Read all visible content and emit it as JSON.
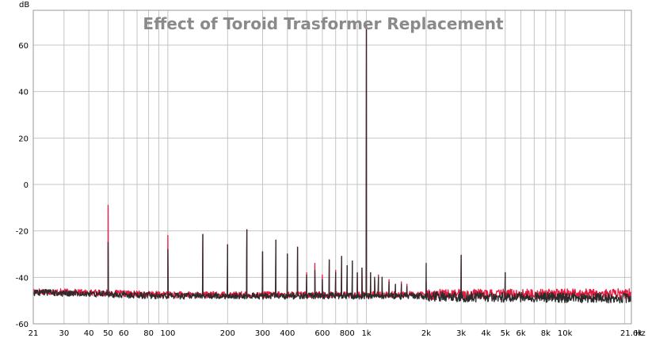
{
  "chart_data": {
    "type": "line",
    "title": "Effect of Toroid Trasformer Replacement",
    "ylabel": "dB",
    "xlabel": "Hz",
    "x_scale": "log",
    "xlim": [
      21,
      21600
    ],
    "ylim": [
      -60,
      75
    ],
    "grid": true,
    "x_ticks": [
      {
        "value": 21,
        "label": "21"
      },
      {
        "value": 30,
        "label": "30"
      },
      {
        "value": 40,
        "label": "40"
      },
      {
        "value": 50,
        "label": "50"
      },
      {
        "value": 60,
        "label": "60"
      },
      {
        "value": 80,
        "label": "80"
      },
      {
        "value": 100,
        "label": "100"
      },
      {
        "value": 200,
        "label": "200"
      },
      {
        "value": 300,
        "label": "300"
      },
      {
        "value": 400,
        "label": "400"
      },
      {
        "value": 600,
        "label": "600"
      },
      {
        "value": 800,
        "label": "800"
      },
      {
        "value": 1000,
        "label": "1k"
      },
      {
        "value": 2000,
        "label": "2k"
      },
      {
        "value": 3000,
        "label": "3k"
      },
      {
        "value": 4000,
        "label": "4k"
      },
      {
        "value": 5000,
        "label": "5k"
      },
      {
        "value": 6000,
        "label": "6k"
      },
      {
        "value": 8000,
        "label": "8k"
      },
      {
        "value": 10000,
        "label": "10k"
      },
      {
        "value": 21600,
        "label": "21.6k"
      }
    ],
    "y_ticks": [
      {
        "value": 60,
        "label": "60"
      },
      {
        "value": 40,
        "label": "40"
      },
      {
        "value": 20,
        "label": "20"
      },
      {
        "value": 0,
        "label": "0"
      },
      {
        "value": -20,
        "label": "-20"
      },
      {
        "value": -40,
        "label": "-40"
      },
      {
        "value": -60,
        "label": "-60"
      }
    ],
    "series": [
      {
        "color": "#e8173c",
        "noise_floor": [
          [
            21,
            -46
          ],
          [
            100,
            -47.5
          ],
          [
            1000,
            -47.5
          ],
          [
            21600,
            -47
          ]
        ],
        "peaks": [
          [
            50,
            -9
          ],
          [
            100,
            -22
          ],
          [
            150,
            -21.5
          ],
          [
            200,
            -26
          ],
          [
            250,
            -19.5
          ],
          [
            300,
            -29
          ],
          [
            350,
            -24
          ],
          [
            400,
            -30
          ],
          [
            450,
            -27
          ],
          [
            500,
            -38
          ],
          [
            550,
            -34
          ],
          [
            600,
            -39
          ],
          [
            650,
            -32.5
          ],
          [
            700,
            -37
          ],
          [
            750,
            -31
          ],
          [
            800,
            -35
          ],
          [
            850,
            -33
          ],
          [
            900,
            -38
          ],
          [
            950,
            -36
          ],
          [
            1000,
            69
          ],
          [
            1050,
            -38
          ],
          [
            1100,
            -41
          ],
          [
            1150,
            -39
          ],
          [
            1200,
            -40
          ],
          [
            1300,
            -41
          ],
          [
            1400,
            -43
          ],
          [
            1500,
            -42
          ],
          [
            1600,
            -43
          ],
          [
            2000,
            -42
          ],
          [
            3000,
            -30.5
          ],
          [
            5000,
            -38
          ]
        ]
      },
      {
        "color": "#2b2b2b",
        "noise_floor": [
          [
            21,
            -46.5
          ],
          [
            100,
            -48
          ],
          [
            1000,
            -48
          ],
          [
            21600,
            -49
          ]
        ],
        "peaks": [
          [
            50,
            -25
          ],
          [
            100,
            -28
          ],
          [
            150,
            -21.5
          ],
          [
            200,
            -26
          ],
          [
            250,
            -19.5
          ],
          [
            300,
            -29
          ],
          [
            350,
            -24
          ],
          [
            400,
            -30
          ],
          [
            450,
            -27
          ],
          [
            500,
            -39
          ],
          [
            550,
            -37
          ],
          [
            600,
            -41
          ],
          [
            650,
            -32.5
          ],
          [
            700,
            -38
          ],
          [
            750,
            -31
          ],
          [
            800,
            -35
          ],
          [
            850,
            -33
          ],
          [
            900,
            -38
          ],
          [
            950,
            -36
          ],
          [
            1000,
            69
          ],
          [
            1050,
            -38
          ],
          [
            1100,
            -40
          ],
          [
            1150,
            -40
          ],
          [
            1200,
            -40
          ],
          [
            1300,
            -42
          ],
          [
            1400,
            -43
          ],
          [
            1500,
            -43
          ],
          [
            1600,
            -44
          ],
          [
            2000,
            -34
          ],
          [
            3000,
            -30.5
          ],
          [
            5000,
            -38
          ]
        ]
      }
    ]
  }
}
